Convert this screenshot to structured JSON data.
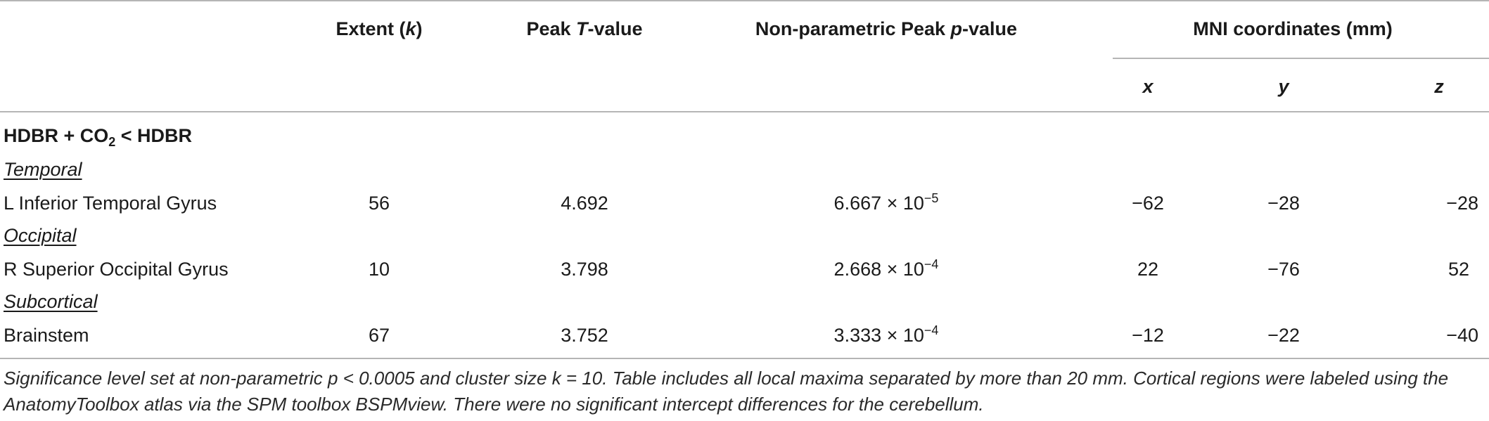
{
  "header": {
    "extent_prefix": "Extent (",
    "extent_k": "k",
    "extent_suffix": ")",
    "peak_t_prefix": "Peak ",
    "peak_t_T": "T",
    "peak_t_suffix": "-value",
    "peak_p_prefix": "Non-parametric Peak ",
    "peak_p_p": "p",
    "peak_p_suffix": "-value",
    "mni": "MNI coordinates (mm)",
    "x": "x",
    "y": "y",
    "z": "z"
  },
  "section": {
    "prefix": "HDBR + CO",
    "sub": "2",
    "suffix": " < HDBR"
  },
  "groups": [
    {
      "label": "Temporal",
      "row": {
        "region": "L Inferior Temporal Gyrus",
        "extent": "56",
        "peak_t": "4.692",
        "p_mantissa": "6.667 × 10",
        "p_exp": "−5",
        "x": "−62",
        "y": "−28",
        "z": "−28"
      }
    },
    {
      "label": "Occipital",
      "row": {
        "region": "R Superior Occipital Gyrus",
        "extent": "10",
        "peak_t": "3.798",
        "p_mantissa": "2.668 × 10",
        "p_exp": "−4",
        "x": "22",
        "y": "−76",
        "z": "52"
      }
    },
    {
      "label": "Subcortical",
      "row": {
        "region": "Brainstem",
        "extent": "67",
        "peak_t": "3.752",
        "p_mantissa": "3.333 × 10",
        "p_exp": "−4",
        "x": "−12",
        "y": "−22",
        "z": "−40"
      }
    }
  ],
  "footnote": "Significance level set at non-parametric p < 0.0005 and cluster size k = 10. Table includes all local maxima separated by more than 20 mm. Cortical regions were labeled using the AnatomyToolbox atlas via the SPM toolbox BSPMview. There were no significant intercept differences for the cerebellum."
}
